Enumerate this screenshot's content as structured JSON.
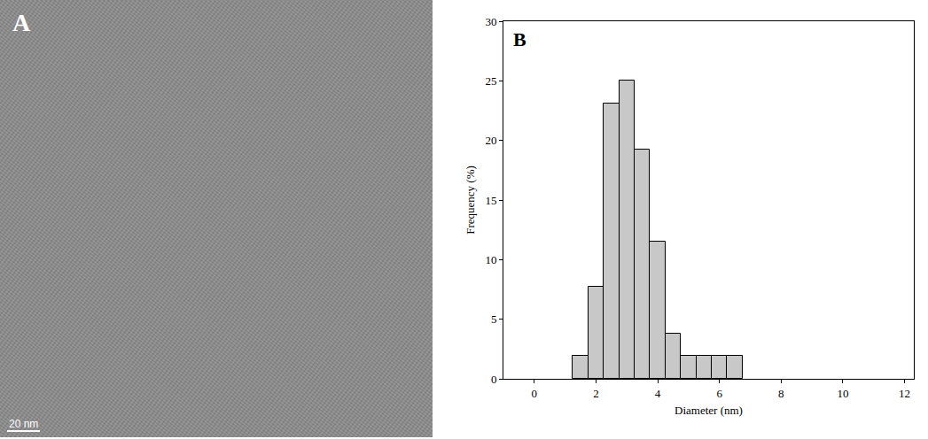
{
  "image_panel": {
    "label": "A",
    "scale_bar": "20 nm"
  },
  "chart_data": {
    "type": "histogram",
    "panel_label": "B",
    "x_label": "Diameter (nm)",
    "y_label": "Frequency (%)",
    "bins": [
      1.25,
      1.75,
      2.25,
      2.75,
      3.25,
      3.75,
      4.25,
      4.75,
      5.25,
      5.75,
      6.25,
      6.75
    ],
    "values": [
      1.9,
      7.7,
      23.1,
      25.0,
      19.2,
      11.5,
      3.8,
      1.9,
      1.9,
      1.9,
      1.9
    ],
    "color": "#c8c8c8",
    "xlim": [
      -1,
      12.3
    ],
    "xticks": [
      0,
      2,
      4,
      6,
      8,
      10,
      12
    ],
    "ylim": [
      0,
      30
    ],
    "yticks": [
      0,
      5,
      10,
      15,
      20,
      25,
      30
    ],
    "grid": false
  }
}
